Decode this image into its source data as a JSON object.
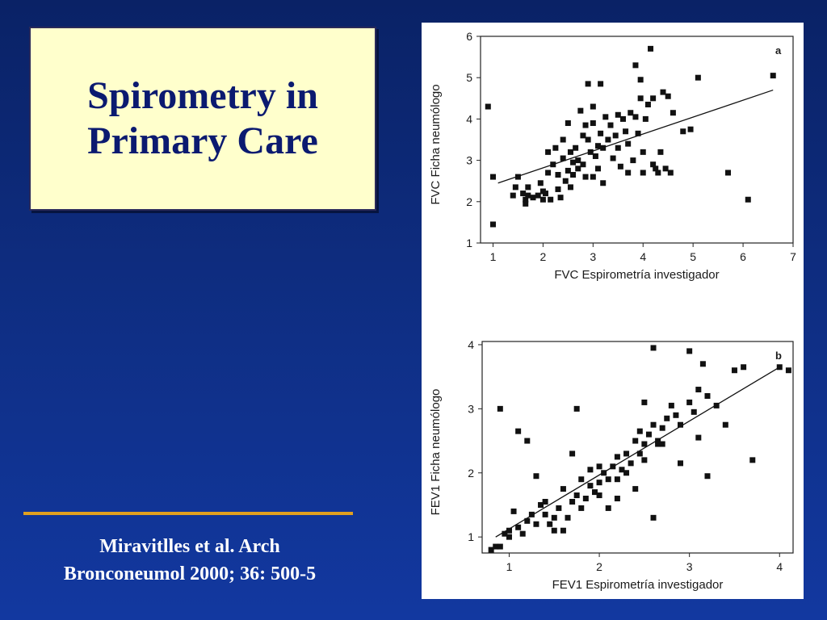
{
  "slide": {
    "title_line1": "Spirometry in",
    "title_line2": "Primary Care",
    "citation_line1": "Miravitlles et al. Arch",
    "citation_line2": "Bronconeumol 2000; 36: 500-5"
  },
  "colors": {
    "background": "#0f2f86",
    "title_box": "#ffffcc",
    "title_text": "#0b1a70",
    "divider": "#e0a020",
    "marker": "#111111"
  },
  "chart_data": [
    {
      "type": "scatter",
      "panel_label": "a",
      "xlabel": "FVC Espirometría investigador",
      "ylabel": "FVC Ficha neumólogo",
      "xlim": [
        0.75,
        7
      ],
      "ylim": [
        1,
        6
      ],
      "xticks": [
        1,
        2,
        3,
        4,
        5,
        6,
        7
      ],
      "yticks": [
        1,
        2,
        3,
        4,
        5,
        6
      ],
      "regression_line": {
        "x": [
          1.1,
          6.6
        ],
        "y": [
          2.45,
          4.7
        ]
      },
      "points": [
        [
          0.9,
          4.3
        ],
        [
          1.0,
          2.6
        ],
        [
          1.0,
          1.45
        ],
        [
          1.4,
          2.15
        ],
        [
          1.45,
          2.35
        ],
        [
          1.5,
          2.6
        ],
        [
          1.6,
          2.2
        ],
        [
          1.65,
          2.05
        ],
        [
          1.65,
          1.95
        ],
        [
          1.7,
          2.15
        ],
        [
          1.7,
          2.35
        ],
        [
          1.8,
          2.1
        ],
        [
          1.9,
          2.15
        ],
        [
          1.95,
          2.45
        ],
        [
          2.0,
          2.05
        ],
        [
          2.0,
          2.25
        ],
        [
          2.05,
          2.2
        ],
        [
          2.1,
          3.2
        ],
        [
          2.1,
          2.7
        ],
        [
          2.15,
          2.05
        ],
        [
          2.2,
          2.9
        ],
        [
          2.25,
          3.3
        ],
        [
          2.3,
          2.65
        ],
        [
          2.3,
          2.3
        ],
        [
          2.35,
          2.1
        ],
        [
          2.4,
          3.5
        ],
        [
          2.4,
          3.05
        ],
        [
          2.45,
          2.5
        ],
        [
          2.5,
          3.9
        ],
        [
          2.5,
          2.75
        ],
        [
          2.55,
          3.2
        ],
        [
          2.55,
          2.35
        ],
        [
          2.6,
          2.95
        ],
        [
          2.6,
          2.65
        ],
        [
          2.65,
          3.3
        ],
        [
          2.7,
          3.0
        ],
        [
          2.7,
          2.8
        ],
        [
          2.75,
          4.2
        ],
        [
          2.8,
          3.6
        ],
        [
          2.8,
          2.9
        ],
        [
          2.85,
          3.85
        ],
        [
          2.85,
          2.6
        ],
        [
          2.9,
          4.85
        ],
        [
          2.9,
          3.5
        ],
        [
          2.95,
          3.2
        ],
        [
          3.0,
          4.3
        ],
        [
          3.0,
          3.9
        ],
        [
          3.0,
          2.6
        ],
        [
          3.05,
          3.1
        ],
        [
          3.1,
          3.35
        ],
        [
          3.1,
          2.8
        ],
        [
          3.15,
          4.85
        ],
        [
          3.15,
          3.65
        ],
        [
          3.2,
          3.3
        ],
        [
          3.2,
          2.45
        ],
        [
          3.25,
          4.05
        ],
        [
          3.3,
          3.5
        ],
        [
          3.35,
          3.85
        ],
        [
          3.4,
          3.05
        ],
        [
          3.45,
          3.6
        ],
        [
          3.5,
          4.1
        ],
        [
          3.5,
          3.3
        ],
        [
          3.55,
          2.85
        ],
        [
          3.6,
          4.0
        ],
        [
          3.65,
          3.7
        ],
        [
          3.7,
          3.4
        ],
        [
          3.75,
          4.15
        ],
        [
          3.8,
          3.0
        ],
        [
          3.85,
          4.05
        ],
        [
          3.85,
          5.3
        ],
        [
          3.9,
          3.65
        ],
        [
          3.95,
          4.5
        ],
        [
          4.0,
          3.2
        ],
        [
          4.0,
          2.7
        ],
        [
          4.05,
          4.0
        ],
        [
          4.1,
          4.35
        ],
        [
          4.15,
          5.7
        ],
        [
          4.2,
          2.9
        ],
        [
          4.25,
          2.8
        ],
        [
          4.3,
          2.7
        ],
        [
          4.35,
          3.2
        ],
        [
          4.4,
          4.65
        ],
        [
          4.45,
          2.8
        ],
        [
          4.5,
          4.55
        ],
        [
          4.55,
          2.7
        ],
        [
          4.6,
          4.15
        ],
        [
          4.8,
          3.7
        ],
        [
          4.95,
          3.75
        ],
        [
          4.2,
          4.5
        ],
        [
          5.1,
          5.0
        ],
        [
          3.7,
          2.7
        ],
        [
          3.95,
          4.95
        ],
        [
          5.7,
          2.7
        ],
        [
          6.1,
          2.05
        ],
        [
          6.6,
          5.05
        ]
      ]
    },
    {
      "type": "scatter",
      "panel_label": "b",
      "xlabel": "FEV1 Espirometría investigador",
      "ylabel": "FEV1 Ficha neumólogo",
      "xlim": [
        0.7,
        4.15
      ],
      "ylim": [
        0.75,
        4.05
      ],
      "xticks": [
        1,
        2,
        3,
        4
      ],
      "yticks": [
        1,
        2,
        3,
        4
      ],
      "regression_line": {
        "x": [
          0.85,
          4.0
        ],
        "y": [
          1.0,
          3.65
        ]
      },
      "points": [
        [
          0.8,
          0.8
        ],
        [
          0.85,
          0.85
        ],
        [
          0.9,
          0.85
        ],
        [
          0.95,
          1.05
        ],
        [
          1.0,
          1.1
        ],
        [
          1.0,
          1.0
        ],
        [
          1.05,
          1.4
        ],
        [
          1.1,
          1.15
        ],
        [
          1.15,
          1.05
        ],
        [
          1.2,
          1.25
        ],
        [
          1.25,
          1.35
        ],
        [
          1.3,
          1.2
        ],
        [
          1.35,
          1.5
        ],
        [
          1.4,
          1.55
        ],
        [
          1.45,
          1.2
        ],
        [
          1.5,
          1.3
        ],
        [
          1.55,
          1.45
        ],
        [
          1.6,
          1.1
        ],
        [
          1.6,
          1.75
        ],
        [
          1.65,
          1.3
        ],
        [
          1.7,
          1.55
        ],
        [
          1.75,
          1.65
        ],
        [
          1.8,
          1.45
        ],
        [
          1.85,
          1.6
        ],
        [
          1.9,
          1.8
        ],
        [
          1.95,
          1.7
        ],
        [
          2.0,
          1.85
        ],
        [
          2.05,
          2.0
        ],
        [
          2.1,
          1.9
        ],
        [
          2.15,
          2.1
        ],
        [
          2.2,
          2.25
        ],
        [
          2.25,
          2.05
        ],
        [
          2.3,
          2.3
        ],
        [
          2.35,
          2.15
        ],
        [
          2.4,
          2.5
        ],
        [
          2.45,
          2.3
        ],
        [
          2.5,
          2.45
        ],
        [
          2.55,
          2.6
        ],
        [
          2.6,
          2.75
        ],
        [
          2.65,
          2.5
        ],
        [
          2.7,
          2.7
        ],
        [
          2.75,
          2.85
        ],
        [
          2.8,
          3.05
        ],
        [
          2.85,
          2.9
        ],
        [
          2.9,
          2.75
        ],
        [
          3.0,
          3.1
        ],
        [
          3.05,
          2.95
        ],
        [
          3.1,
          3.3
        ],
        [
          3.2,
          3.2
        ],
        [
          3.3,
          3.05
        ],
        [
          3.4,
          2.75
        ],
        [
          3.5,
          3.6
        ],
        [
          3.6,
          3.65
        ],
        [
          4.0,
          3.65
        ],
        [
          4.1,
          3.6
        ],
        [
          0.9,
          3.0
        ],
        [
          1.1,
          2.65
        ],
        [
          1.2,
          2.5
        ],
        [
          1.3,
          1.95
        ],
        [
          1.7,
          2.3
        ],
        [
          1.75,
          3.0
        ],
        [
          2.1,
          1.45
        ],
        [
          2.2,
          1.6
        ],
        [
          2.4,
          1.75
        ],
        [
          2.5,
          3.1
        ],
        [
          2.6,
          1.3
        ],
        [
          2.6,
          3.95
        ],
        [
          2.65,
          2.45
        ],
        [
          3.0,
          3.9
        ],
        [
          3.2,
          1.95
        ],
        [
          3.7,
          2.2
        ],
        [
          3.15,
          3.7
        ],
        [
          2.9,
          2.15
        ],
        [
          2.5,
          2.2
        ],
        [
          1.9,
          2.05
        ],
        [
          2.0,
          1.65
        ],
        [
          1.4,
          1.35
        ],
        [
          1.5,
          1.1
        ],
        [
          2.3,
          2.0
        ],
        [
          2.7,
          2.45
        ],
        [
          3.1,
          2.55
        ],
        [
          2.2,
          1.9
        ],
        [
          1.8,
          1.9
        ],
        [
          2.0,
          2.1
        ],
        [
          2.45,
          2.65
        ]
      ]
    }
  ]
}
